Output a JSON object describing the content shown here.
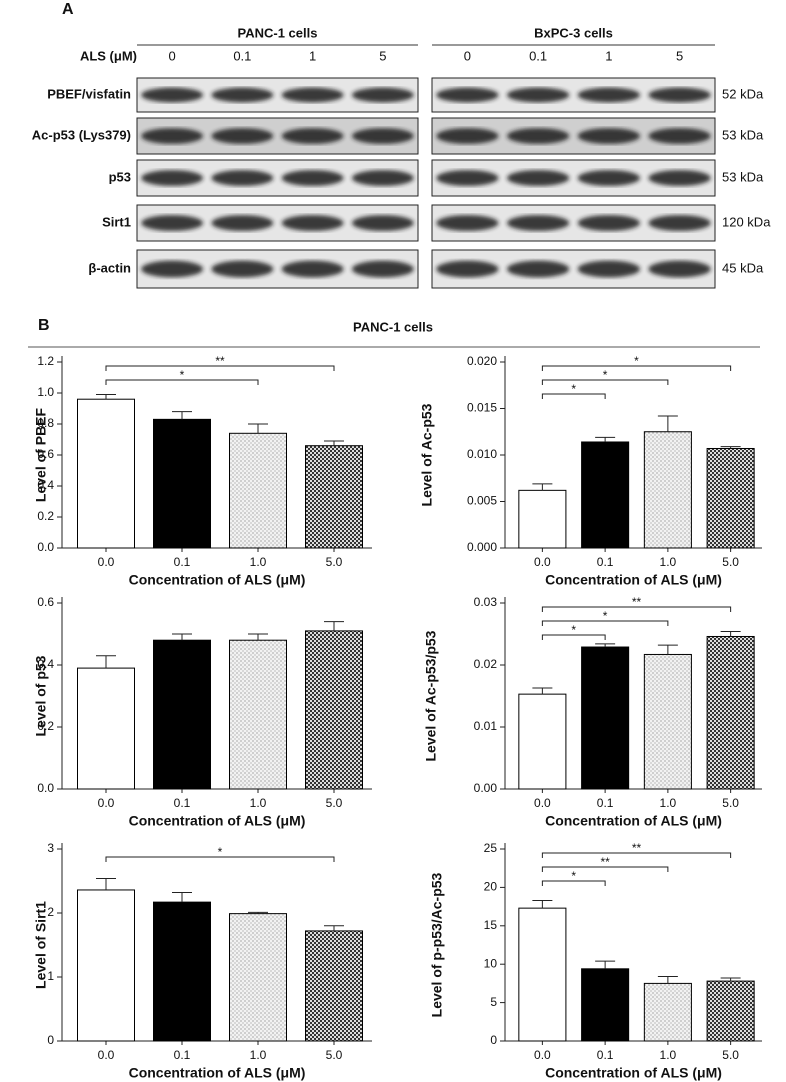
{
  "panel_a": {
    "label": "A",
    "lane_header": "ALS (μM)",
    "groups": [
      {
        "name": "PANC-1 cells",
        "lanes": [
          "0",
          "0.1",
          "1",
          "5"
        ]
      },
      {
        "name": "BxPC-3 cells",
        "lanes": [
          "0",
          "0.1",
          "1",
          "5"
        ]
      }
    ],
    "rows": [
      {
        "protein": "PBEF/visfatin",
        "size": "52 kDa"
      },
      {
        "protein": "Ac-p53 (Lys379)",
        "size": "53 kDa"
      },
      {
        "protein": "p53",
        "size": "53 kDa"
      },
      {
        "protein": "Sirt1",
        "size": "120 kDa"
      },
      {
        "protein": "β-actin",
        "size": "45 kDa"
      }
    ]
  },
  "panel_b": {
    "label": "B",
    "title": "PANC-1 cells"
  },
  "chart_data": [
    {
      "type": "bar",
      "ylabel": "Level of PBEF",
      "xlabel": "Concentration of ALS (μM)",
      "categories": [
        "0.0",
        "0.1",
        "1.0",
        "5.0"
      ],
      "values": [
        0.96,
        0.83,
        0.74,
        0.66
      ],
      "errors": [
        0.03,
        0.05,
        0.06,
        0.03
      ],
      "ylim": [
        0,
        1.2
      ],
      "yticks": [
        {
          "value": 0,
          "label": "0.0"
        },
        0.2,
        0.4,
        0.6,
        0.8,
        {
          "value": 1,
          "label": "1.0"
        },
        1.2
      ],
      "annotations": [
        {
          "from": "0.0",
          "to": "1.0",
          "label": "*"
        },
        {
          "from": "0.0",
          "to": "5.0",
          "label": "**"
        }
      ]
    },
    {
      "type": "bar",
      "ylabel": "Level of Ac-p53",
      "xlabel": "Concentration of ALS (μM)",
      "categories": [
        "0.0",
        "0.1",
        "1.0",
        "5.0"
      ],
      "values": [
        0.0062,
        0.0114,
        0.0125,
        0.0107
      ],
      "errors": [
        0.0007,
        0.0005,
        0.0017,
        0.0002
      ],
      "ylim": [
        0,
        0.02
      ],
      "yticks": [
        {
          "value": 0,
          "label": "0.000"
        },
        {
          "value": 0.005,
          "label": "0.005"
        },
        {
          "value": 0.01,
          "label": "0.010"
        },
        {
          "value": 0.015,
          "label": "0.015"
        },
        {
          "value": 0.02,
          "label": "0.020"
        }
      ],
      "annotations": [
        {
          "from": "0.0",
          "to": "0.1",
          "label": "*"
        },
        {
          "from": "0.0",
          "to": "1.0",
          "label": "*"
        },
        {
          "from": "0.0",
          "to": "5.0",
          "label": "*"
        }
      ]
    },
    {
      "type": "bar",
      "ylabel": "Level of p53",
      "xlabel": "Concentration of ALS (μM)",
      "categories": [
        "0.0",
        "0.1",
        "1.0",
        "5.0"
      ],
      "values": [
        0.39,
        0.48,
        0.48,
        0.51
      ],
      "errors": [
        0.04,
        0.02,
        0.02,
        0.03
      ],
      "ylim": [
        0,
        0.6
      ],
      "yticks": [
        {
          "value": 0,
          "label": "0.0"
        },
        0.2,
        0.4,
        0.6
      ],
      "annotations": []
    },
    {
      "type": "bar",
      "ylabel": "Level of Ac-p53/p53",
      "xlabel": "Concentration of ALS (μM)",
      "categories": [
        "0.0",
        "0.1",
        "1.0",
        "5.0"
      ],
      "values": [
        0.0153,
        0.0229,
        0.0217,
        0.0246
      ],
      "errors": [
        0.001,
        0.0005,
        0.0015,
        0.0008
      ],
      "ylim": [
        0,
        0.03
      ],
      "yticks": [
        {
          "value": 0,
          "label": "0.00"
        },
        0.01,
        0.02,
        0.03
      ],
      "annotations": [
        {
          "from": "0.0",
          "to": "0.1",
          "label": "*"
        },
        {
          "from": "0.0",
          "to": "1.0",
          "label": "*"
        },
        {
          "from": "0.0",
          "to": "5.0",
          "label": "**"
        }
      ]
    },
    {
      "type": "bar",
      "ylabel": "Level of Sirt1",
      "xlabel": "Concentration of ALS (μM)",
      "categories": [
        "0.0",
        "0.1",
        "1.0",
        "5.0"
      ],
      "values": [
        2.36,
        2.17,
        1.99,
        1.72
      ],
      "errors": [
        0.18,
        0.15,
        0.02,
        0.08
      ],
      "ylim": [
        0,
        3
      ],
      "yticks": [
        0,
        1,
        2,
        3
      ],
      "annotations": [
        {
          "from": "0.0",
          "to": "5.0",
          "label": "*"
        }
      ]
    },
    {
      "type": "bar",
      "ylabel": "Level of p-p53/Ac-p53",
      "xlabel": "Concentration of ALS (μM)",
      "categories": [
        "0.0",
        "0.1",
        "1.0",
        "5.0"
      ],
      "values": [
        17.3,
        9.4,
        7.5,
        7.8
      ],
      "errors": [
        1.0,
        1.0,
        0.9,
        0.4
      ],
      "ylim": [
        0,
        25
      ],
      "yticks": [
        0,
        5,
        10,
        15,
        20,
        25
      ],
      "annotations": [
        {
          "from": "0.0",
          "to": "0.1",
          "label": "*"
        },
        {
          "from": "0.0",
          "to": "1.0",
          "label": "**"
        },
        {
          "from": "0.0",
          "to": "5.0",
          "label": "**"
        }
      ]
    }
  ]
}
